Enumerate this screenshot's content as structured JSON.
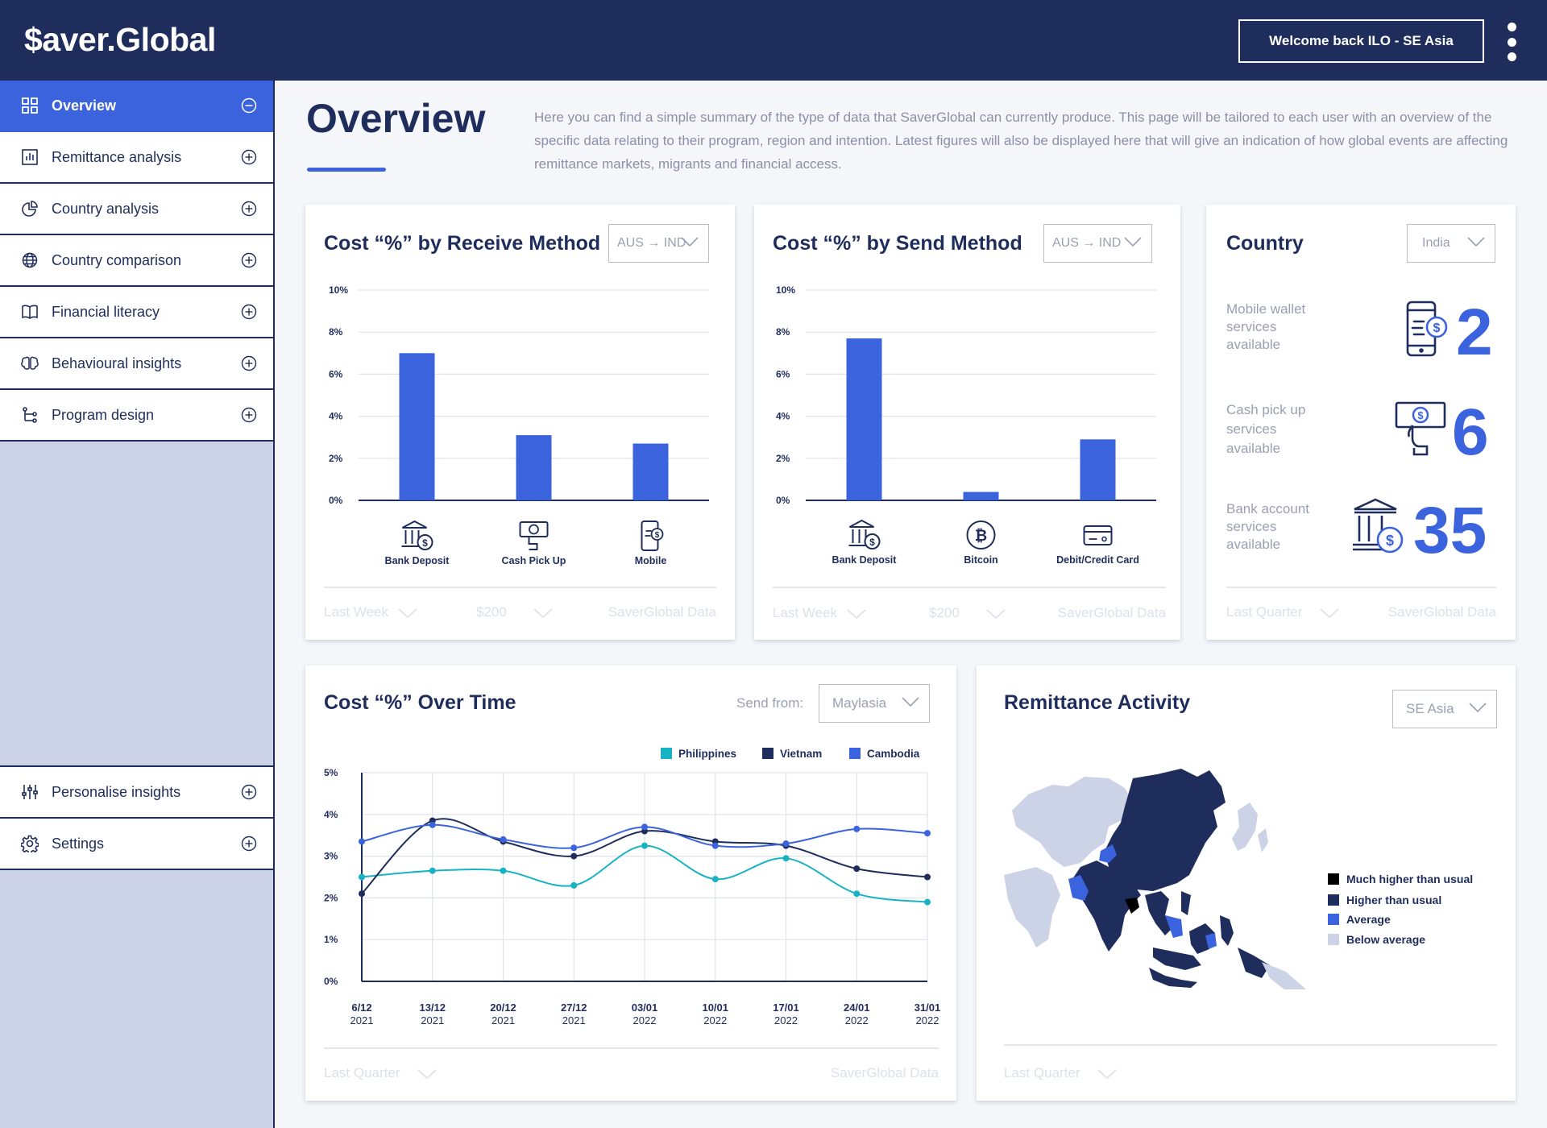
{
  "header": {
    "logo": "$aver.Global",
    "welcome": "Welcome back ILO - SE Asia"
  },
  "sidebar": {
    "items": [
      {
        "label": "Overview",
        "icon": "grid-icon"
      },
      {
        "label": "Remittance analysis",
        "icon": "bar-chart-icon"
      },
      {
        "label": "Country analysis",
        "icon": "pie-chart-icon"
      },
      {
        "label": "Country comparison",
        "icon": "globe-icon"
      },
      {
        "label": "Financial literacy",
        "icon": "book-icon"
      },
      {
        "label": "Behavioural insights",
        "icon": "brain-icon"
      },
      {
        "label": "Program design",
        "icon": "flow-icon"
      }
    ],
    "bottom_items": [
      {
        "label": "Personalise insights",
        "icon": "sliders-icon"
      },
      {
        "label": "Settings",
        "icon": "gear-icon"
      }
    ]
  },
  "page": {
    "title": "Overview",
    "intro": "Here you can find a simple summary of the type of data that SaverGlobal can currently produce. This page will be tailored to each user with an overview of the specific data relating to their program, region and intention. Latest figures will also be displayed here that will give an indication of how global events are affecting remittance markets, migrants and financial access."
  },
  "cards": {
    "receive": {
      "title": "Cost “%” by Receive Method",
      "dropdown": "AUS → IND",
      "footer": [
        "Last Week",
        "$200",
        "SaverGlobal Data"
      ]
    },
    "send": {
      "title": "Cost “%” by Send Method",
      "dropdown": "AUS → IND",
      "footer": [
        "Last Week",
        "$200",
        "SaverGlobal Data"
      ]
    },
    "country": {
      "title": "Country",
      "dropdown": "India",
      "stats": [
        {
          "label": "Mobile wallet services available",
          "value": "2",
          "icon": "mobile-wallet-icon"
        },
        {
          "label": "Cash pick up services available",
          "value": "6",
          "icon": "cash-pickup-icon"
        },
        {
          "label": "Bank account services available",
          "value": "35",
          "icon": "bank-icon"
        }
      ],
      "footer": [
        "Last Quarter",
        "SaverGlobal Data"
      ]
    },
    "overtime": {
      "title": "Cost “%” Over Time",
      "send_from_label": "Send from:",
      "dropdown": "Maylasia",
      "footer": [
        "Last Quarter",
        "SaverGlobal Data"
      ]
    },
    "activity": {
      "title": "Remittance Activity",
      "dropdown": "SE Asia",
      "legend": [
        {
          "label": "Much higher than usual",
          "color": "#000000"
        },
        {
          "label": "Higher than usual",
          "color": "#1f2d5c"
        },
        {
          "label": "Average",
          "color": "#3b63dd"
        },
        {
          "label": "Below average",
          "color": "#cdd3e6"
        }
      ],
      "footer": [
        "Last Quarter"
      ]
    }
  },
  "chart_data": [
    {
      "type": "bar",
      "title": "Cost “%” by Receive Method",
      "categories": [
        "Bank Deposit",
        "Cash Pick Up",
        "Mobile"
      ],
      "values": [
        7.0,
        3.1,
        2.7
      ],
      "yticks": [
        "10%",
        "8%",
        "6%",
        "4%",
        "2%",
        "0%"
      ],
      "ylim": [
        0,
        10
      ],
      "color": "#3b63dd",
      "grid": true
    },
    {
      "type": "bar",
      "title": "Cost “%” by Send Method",
      "categories": [
        "Bank Deposit",
        "Bitcoin",
        "Debit/Credit Card"
      ],
      "values": [
        7.7,
        0.4,
        2.9
      ],
      "yticks": [
        "10%",
        "8%",
        "6%",
        "4%",
        "2%",
        "0%"
      ],
      "ylim": [
        0,
        10
      ],
      "color": "#3b63dd",
      "grid": true
    },
    {
      "type": "line",
      "title": "Cost “%” Over Time",
      "x": [
        [
          "6/12",
          "2021"
        ],
        [
          "13/12",
          "2021"
        ],
        [
          "20/12",
          "2021"
        ],
        [
          "27/12",
          "2021"
        ],
        [
          "03/01",
          "2022"
        ],
        [
          "10/01",
          "2022"
        ],
        [
          "17/01",
          "2022"
        ],
        [
          "24/01",
          "2022"
        ],
        [
          "31/01",
          "2022"
        ]
      ],
      "yticks": [
        "5%",
        "4%",
        "3%",
        "2%",
        "1%",
        "0%"
      ],
      "ylim": [
        0,
        5
      ],
      "series": [
        {
          "name": "Philippines",
          "color": "#17b3c4",
          "values": [
            2.5,
            2.65,
            2.65,
            2.3,
            3.25,
            2.45,
            2.95,
            2.1,
            1.9
          ]
        },
        {
          "name": "Vietnam",
          "color": "#1f2d5c",
          "values": [
            2.1,
            3.85,
            3.35,
            3.0,
            3.6,
            3.35,
            3.25,
            2.7,
            2.5
          ]
        },
        {
          "name": "Cambodia",
          "color": "#3b63dd",
          "values": [
            3.35,
            3.75,
            3.4,
            3.2,
            3.7,
            3.25,
            3.3,
            3.65,
            3.55
          ]
        }
      ],
      "grid": true,
      "legend": "top-right"
    }
  ]
}
